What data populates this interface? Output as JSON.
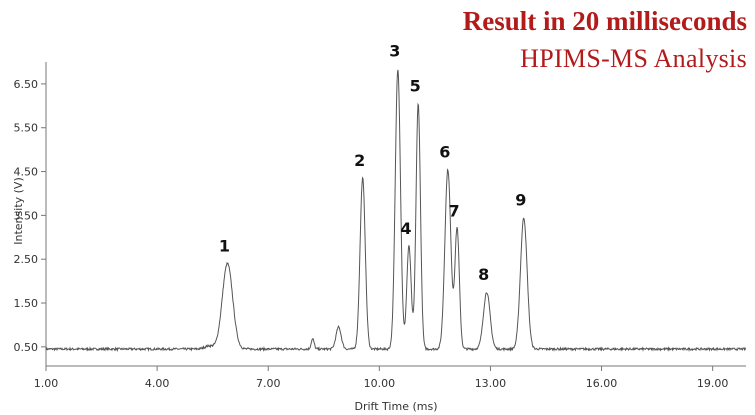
{
  "titles": {
    "main": "Result in 20 milliseconds",
    "sub": "HPIMS-MS Analysis",
    "color": "#b31b1b"
  },
  "chart_data": {
    "type": "line",
    "xlabel": "Drift Time (ms)",
    "ylabel": "Intensity (V)",
    "xlim": [
      1.0,
      19.9
    ],
    "ylim": [
      0.2,
      7.0
    ],
    "x_ticks": [
      "1.00",
      "4.00",
      "7.00",
      "10.00",
      "13.00",
      "16.00",
      "19.00"
    ],
    "x_tick_values": [
      1,
      4,
      7,
      10,
      13,
      16,
      19
    ],
    "y_ticks": [
      "0.50",
      "1.50",
      "2.50",
      "3.50",
      "4.50",
      "5.50",
      "6.50"
    ],
    "y_tick_values": [
      0.5,
      1.5,
      2.5,
      3.5,
      4.5,
      5.5,
      6.5
    ],
    "grid": false,
    "line_color": "#555555",
    "baseline": 0.45,
    "peaks": [
      {
        "label": "1",
        "x": 5.9,
        "y": 2.4,
        "width": 0.14
      },
      {
        "label": "2",
        "x": 9.55,
        "y": 4.35,
        "width": 0.07
      },
      {
        "label": "3",
        "x": 10.5,
        "y": 6.85,
        "width": 0.07
      },
      {
        "label": "4",
        "x": 10.8,
        "y": 2.8,
        "width": 0.06
      },
      {
        "label": "5",
        "x": 11.05,
        "y": 6.05,
        "width": 0.06
      },
      {
        "label": "6",
        "x": 11.85,
        "y": 4.55,
        "width": 0.08
      },
      {
        "label": "7",
        "x": 12.1,
        "y": 3.2,
        "width": 0.06
      },
      {
        "label": "8",
        "x": 12.9,
        "y": 1.75,
        "width": 0.09
      },
      {
        "label": "9",
        "x": 13.9,
        "y": 3.45,
        "width": 0.09
      }
    ],
    "minor_peaks": [
      {
        "x": 8.2,
        "y": 0.68,
        "width": 0.04
      },
      {
        "x": 8.9,
        "y": 0.95,
        "width": 0.07
      },
      {
        "x": 5.4,
        "y": 0.52,
        "width": 0.12
      }
    ]
  }
}
